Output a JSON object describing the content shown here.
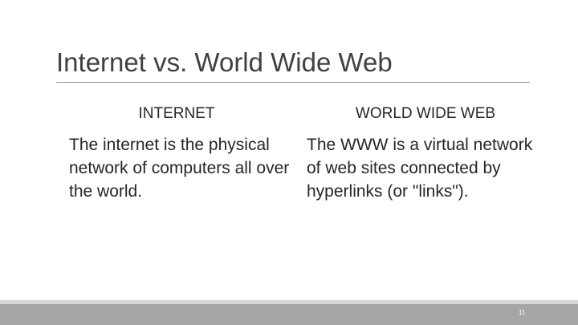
{
  "slide": {
    "title": "Internet vs. World Wide Web",
    "left_column": {
      "heading": "INTERNET",
      "body": "The internet is the physical network of computers all over the world."
    },
    "right_column": {
      "heading": "WORLD WIDE WEB",
      "body": "The WWW is a virtual network of web sites connected by hyperlinks (or \"links\")."
    },
    "slide_number": "11"
  },
  "colors": {
    "title_text": "#404040",
    "body_text": "#262626",
    "title_rule": "#8c8c8c",
    "footer_band": "#a6a6a6",
    "footer_band_light": "#d6d6d6"
  }
}
